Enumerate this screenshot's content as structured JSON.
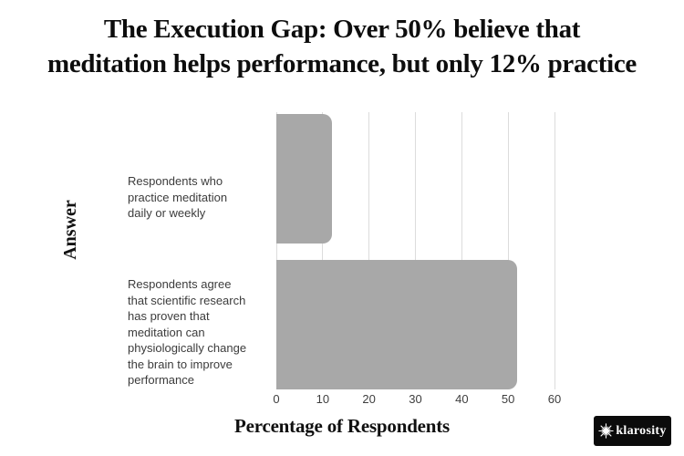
{
  "title": {
    "line1": "The Execution Gap: Over 50% believe that",
    "line2": "meditation helps performance, but only 12% practice"
  },
  "chart_data": {
    "type": "bar",
    "orientation": "horizontal",
    "title": "The Execution Gap: Over 50% believe that meditation helps performance, but only 12% practice",
    "xlabel": "Percentage of Respondents",
    "ylabel": "Answer",
    "xlim": [
      0,
      60
    ],
    "xticks": [
      0,
      10,
      20,
      30,
      40,
      50,
      60
    ],
    "grid": true,
    "legend": false,
    "bar_color": "#a8a8a8",
    "gridline_color": "#dcdcdc",
    "categories": [
      "Respondents who practice meditation daily or weekly",
      "Respondents agree that scientific research has proven that meditation can physiologically change the brain to improve performance"
    ],
    "category_lines": [
      [
        "Respondents who",
        "practice meditation",
        "daily or weekly"
      ],
      [
        "Respondents agree",
        "that scientific research",
        "has proven that",
        "meditation can",
        "physiologically change",
        "the brain to improve",
        "performance"
      ]
    ],
    "values": [
      12,
      52
    ]
  },
  "logo": {
    "text": "klarosity",
    "icon": "starburst-icon",
    "background": "#0b0b0b",
    "color": "#ffffff"
  }
}
